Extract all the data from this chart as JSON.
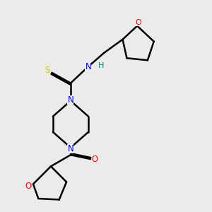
{
  "background_color": "#ebebeb",
  "atom_colors": {
    "C": "#000000",
    "N": "#0000ee",
    "O": "#ff0000",
    "S": "#cccc00",
    "H": "#008080"
  },
  "bond_color": "#000000",
  "bond_width": 1.8,
  "figsize": [
    3.0,
    3.0
  ],
  "dpi": 100,
  "xlim": [
    0,
    10
  ],
  "ylim": [
    0,
    10
  ]
}
